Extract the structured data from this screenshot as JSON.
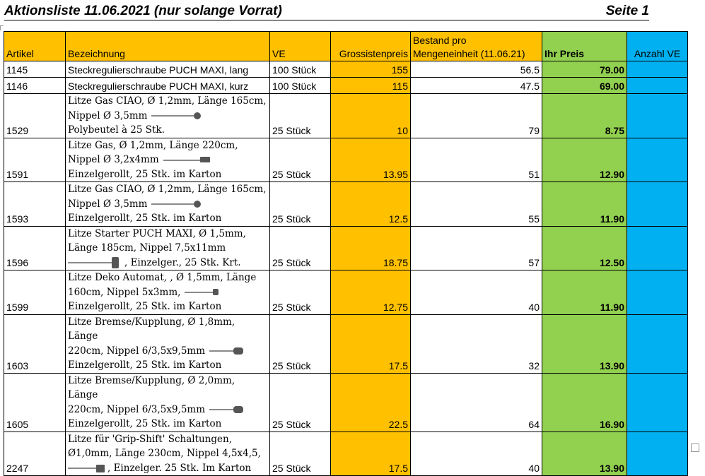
{
  "header": {
    "title": "Aktionsliste 11.06.2021 (nur solange Vorrat)",
    "page": "Seite 1"
  },
  "columns": {
    "artikel": "Artikel",
    "bezeichnung": "Bezeichnung",
    "ve": "VE",
    "gross": "Grossistenpreis",
    "stock_line1": "Bestand pro",
    "stock_line2": "Mengeneinheit (11.06.21)",
    "price": "Ihr Preis",
    "count": "Anzahl VE"
  },
  "rows": [
    {
      "artikel": "1145",
      "lines": [
        "Steckregulierschraube PUCH MAXI, lang"
      ],
      "ve": "100 Stück",
      "gross": "155",
      "stock": "56.5",
      "price": "79.00"
    },
    {
      "artikel": "1146",
      "lines": [
        "Steckregulierschraube PUCH MAXI, kurz"
      ],
      "ve": "100 Stück",
      "gross": "115",
      "stock": "47.5",
      "price": "69.00"
    },
    {
      "artikel": "1529",
      "lines": [
        "Litze Gas CIAO, Ø 1,2mm, Länge 165cm,",
        "Nippel Ø 3,5mm",
        "Polybeutel à 25 Stk."
      ],
      "ve": "25 Stück",
      "gross": "10",
      "stock": "79",
      "price": "8.75",
      "icon": "cable-ball-nipple-icon"
    },
    {
      "artikel": "1591",
      "lines": [
        "Litze Gas, Ø 1,2mm, Länge 220cm,",
        "Nippel Ø 3,2x4mm",
        "Einzelgerollt, 25 Stk. im Karton"
      ],
      "ve": "25 Stück",
      "gross": "13.95",
      "stock": "51",
      "price": "12.90",
      "icon": "cable-barrel-nipple-icon"
    },
    {
      "artikel": "1593",
      "lines": [
        "Litze Gas CIAO, Ø 1,2mm, Länge 165cm,",
        "Nippel Ø 3,5mm",
        "Einzelgerollt, 25 Stk. im Karton"
      ],
      "ve": "25 Stück",
      "gross": "12.5",
      "stock": "55",
      "price": "11.90",
      "icon": "cable-ball-nipple-icon"
    },
    {
      "artikel": "1596",
      "lines": [
        "Litze Starter PUCH MAXI, Ø 1,5mm,",
        "Länge 185cm, Nippel 7,5x11mm",
        ", Einzelger., 25 Stk. Krt."
      ],
      "ve": "25 Stück",
      "gross": "18.75",
      "stock": "57",
      "price": "12.50",
      "icon": "cable-large-nipple-icon"
    },
    {
      "artikel": "1599",
      "lines": [
        "Litze Deko Automat, , Ø 1,5mm, Länge",
        "160cm, Nippel 5x3mm,",
        "Einzelgerollt, 25 Stk. im Karton"
      ],
      "ve": "25 Stück",
      "gross": "12.75",
      "stock": "40",
      "price": "11.90",
      "icon": "cable-small-nipple-icon"
    },
    {
      "artikel": "1603",
      "lines": [
        "Litze Bremse/Kupplung, Ø 1,8mm, Länge",
        "220cm, Nippel 6/3,5x9,5mm",
        "Einzelgerollt, 25 Stk. im Karton"
      ],
      "ve": "25 Stück",
      "gross": "17.5",
      "stock": "32",
      "price": "13.90",
      "icon": "cable-brake-nipple-icon"
    },
    {
      "artikel": "1605",
      "lines": [
        "Litze Bremse/Kupplung, Ø 2,0mm, Länge",
        "220cm, Nippel 6/3,5x9,5mm",
        "Einzelgerollt, 25 Stk. im Karton"
      ],
      "ve": "25 Stück",
      "gross": "22.5",
      "stock": "64",
      "price": "16.90",
      "icon": "cable-brake-nipple-icon"
    },
    {
      "artikel": "2247",
      "lines": [
        "Litze für 'Grip-Shift' Schaltungen,",
        "Ø1,0mm, Länge 230cm, Nippel 4,5x4,5,",
        ", Einzelger. 25 Stk. Im Karton"
      ],
      "ve": "25 Stück",
      "gross": "17.5",
      "stock": "40",
      "price": "13.90",
      "icon": "cable-grip-shift-nipple-icon"
    }
  ],
  "colors": {
    "gross": "#FFC000",
    "price": "#92D050",
    "count": "#00B0F0"
  }
}
